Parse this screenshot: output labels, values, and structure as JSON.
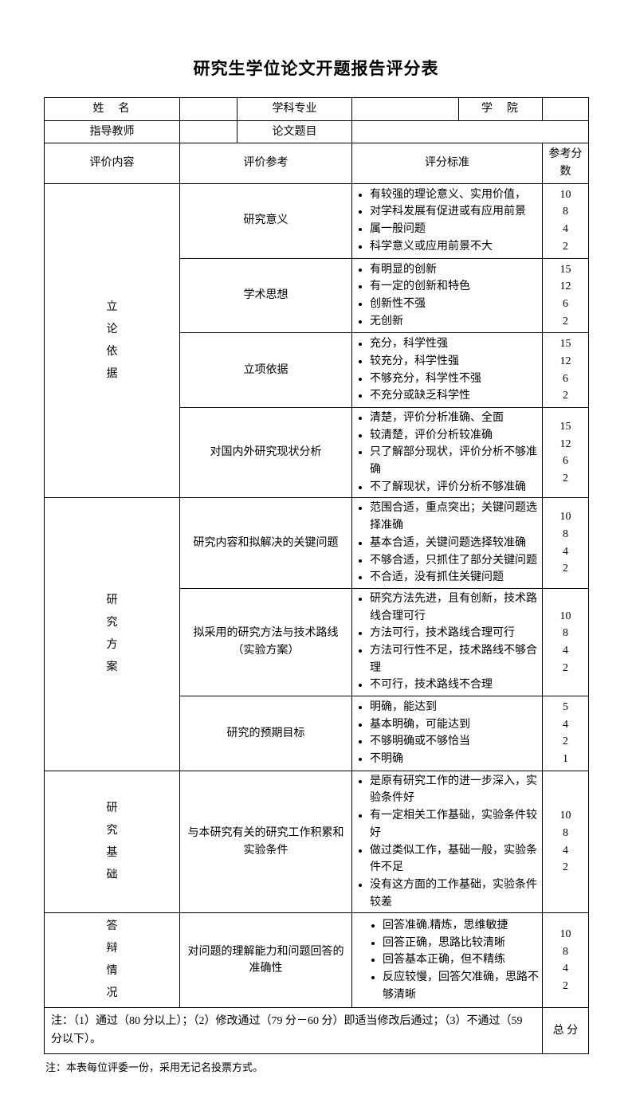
{
  "title": "研究生学位论文开题报告评分表",
  "header": {
    "name_label": "姓　名",
    "subject_label": "学科专业",
    "college_label": "学　院",
    "advisor_label": "指导教师",
    "thesis_label": "论文题目"
  },
  "cols": {
    "eval_content": "评价内容",
    "eval_ref": "评价参考",
    "criteria": "评分标准",
    "ref_score": "参考分数"
  },
  "sections": [
    {
      "category": "立\n论\n依\n据",
      "rows": [
        {
          "ref": "研究意义",
          "items": [
            "有较强的理论意义、实用价值，",
            "对学科发展有促进或有应用前景",
            "属一般问题",
            "科学意义或应用前景不大"
          ],
          "scores": [
            "10",
            "8",
            "4",
            "2"
          ]
        },
        {
          "ref": "学术思想",
          "items": [
            "有明显的创新",
            "有一定的创新和特色",
            "创新性不强",
            "无创新"
          ],
          "scores": [
            "15",
            "12",
            "6",
            "2"
          ]
        },
        {
          "ref": "立项依据",
          "items": [
            "充分，科学性强",
            "较充分，科学性强",
            "不够充分，科学性不强",
            "不充分或缺乏科学性"
          ],
          "scores": [
            "15",
            "12",
            "6",
            "2"
          ]
        },
        {
          "ref": "对国内外研究现状分析",
          "items": [
            "清楚，评价分析准确、全面",
            "较清楚，评价分析较准确",
            "只了解部分现状，评价分析不够准确",
            "不了解现状，评价分析不够准确"
          ],
          "scores": [
            "15",
            "12",
            "6",
            "2"
          ]
        }
      ]
    },
    {
      "category": "研\n究\n方\n案",
      "rows": [
        {
          "ref": "研究内容和拟解决的关键问题",
          "items": [
            "范围合适，重点突出；关键问题选择准确",
            "基本合适，关键问题选择较准确",
            "不够合适，只抓住了部分关键问题",
            "不合适，没有抓住关键问题"
          ],
          "scores": [
            "10",
            "8",
            "4",
            "2"
          ]
        },
        {
          "ref": "拟采用的研究方法与技术路线（实验方案）",
          "items": [
            "研究方法先进，且有创新，技术路线合理可行",
            "方法可行，技术路线合理可行",
            "方法可行性不足，技术路线不够合理",
            "不可行，技术路线不合理"
          ],
          "scores": [
            "10",
            "8",
            "4",
            "2"
          ]
        },
        {
          "ref": "研究的预期目标",
          "items": [
            "明确，能达到",
            "基本明确，可能达到",
            "不够明确或不够恰当",
            "不明确"
          ],
          "scores": [
            "5",
            "4",
            "2",
            "1"
          ]
        }
      ]
    },
    {
      "category": "研\n究\n基\n础",
      "rows": [
        {
          "ref": "与本研究有关的研究工作积累和实验条件",
          "items": [
            "是原有研究工作的进一步深入，实验条件好",
            "有一定相关工作基础，实验条件较好",
            "做过类似工作，基础一般，实验条件不足",
            "没有这方面的工作基础，实验条件较差"
          ],
          "scores": [
            "10",
            "8",
            "4",
            "2"
          ]
        }
      ]
    },
    {
      "category": "答\n辩\n情\n况",
      "rows": [
        {
          "ref": "对问题的理解能力和问题回答的准确性",
          "items": [
            "回答准确.精炼，思维敏捷",
            "回答正确，思路比较清晰",
            "回答基本正确，但不精练",
            "反应较慢，回答欠准确，思路不够清晰"
          ],
          "inner": true,
          "scores": [
            "10",
            "8",
            "4",
            "2"
          ]
        }
      ]
    }
  ],
  "note": "注：（1）通过（80 分以上）；（2）修改通过（79 分－60 分）即适当修改后通过；（3）不通过（59 分以下）。",
  "total_label": "总 分",
  "footnote": "注：本表每位评委一份，采用无记名投票方式。"
}
